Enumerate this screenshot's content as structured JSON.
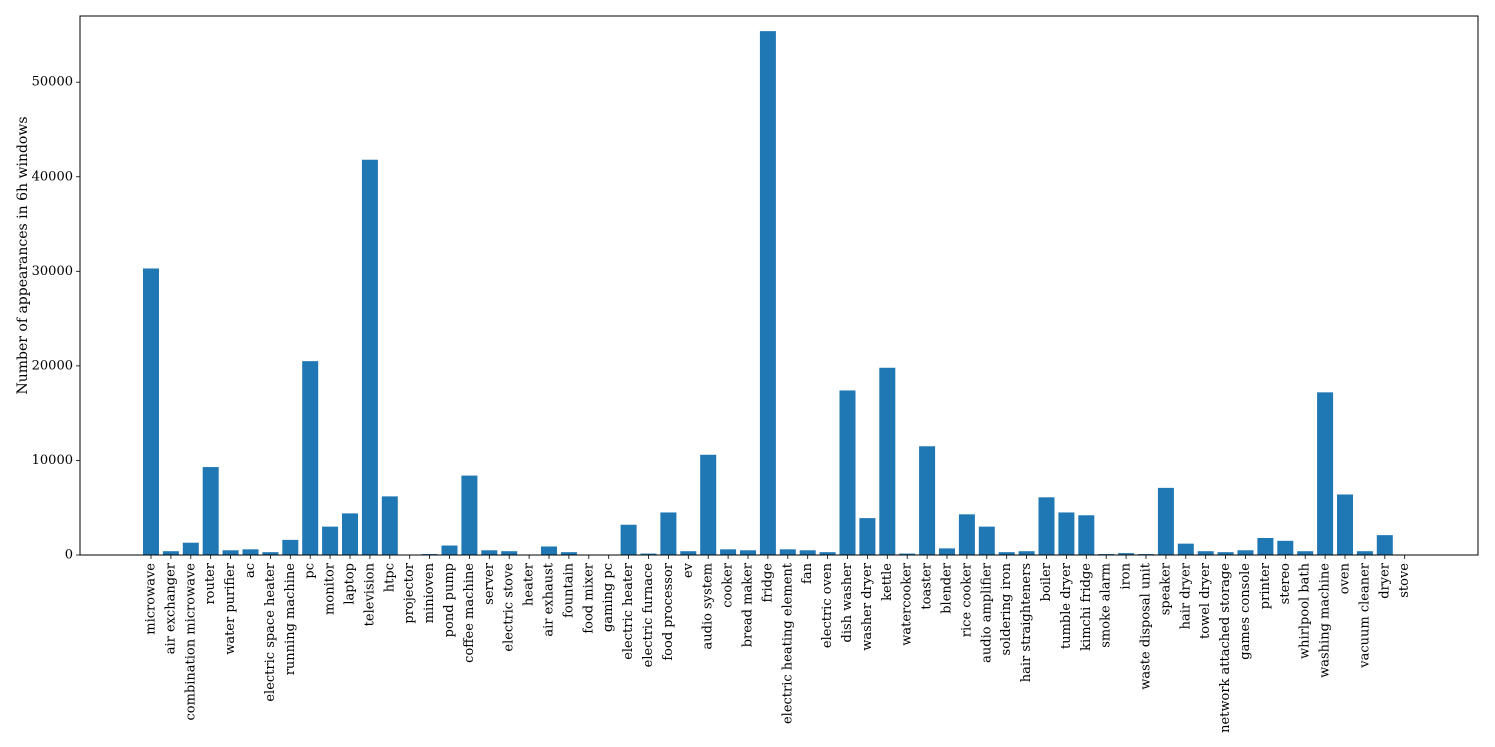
{
  "chart_data": {
    "type": "bar",
    "title": "",
    "xlabel": "",
    "ylabel": "Number of appearances in 6h windows",
    "ylim": [
      0,
      57000
    ],
    "yticks": [
      0,
      10000,
      20000,
      30000,
      40000,
      50000
    ],
    "ytick_labels": [
      "0",
      "10000",
      "20000",
      "30000",
      "40000",
      "50000"
    ],
    "grid": false,
    "bar_color": "#1f77b4",
    "categories": [
      "microwave",
      "air exchanger",
      "combination microwave",
      "router",
      "water purifier",
      "ac",
      "electric space heater",
      "running machine",
      "pc",
      "monitor",
      "laptop",
      "television",
      "htpc",
      "projector",
      "minioven",
      "pond pump",
      "coffee machine",
      "server",
      "electric stove",
      "heater",
      "air exhaust",
      "fountain",
      "food mixer",
      "gaming pc",
      "electric heater",
      "electric furnace",
      "food processor",
      "ev",
      "audio system",
      "cooker",
      "bread maker",
      "fridge",
      "electric heating element",
      "fan",
      "electric oven",
      "dish washer",
      "washer dryer",
      "kettle",
      "watercooker",
      "toaster",
      "blender",
      "rice cooker",
      "audio amplifier",
      "soldering iron",
      "hair straighteners",
      "boiler",
      "tumble dryer",
      "kimchi fridge",
      "smoke alarm",
      "iron",
      "waste disposal unit",
      "speaker",
      "hair dryer",
      "towel dryer",
      "network attached storage",
      "games console",
      "printer",
      "stereo",
      "whirlpool bath",
      "washing machine",
      "oven",
      "vacuum cleaner",
      "dryer",
      "stove"
    ],
    "values": [
      30300,
      400,
      1300,
      9300,
      500,
      600,
      300,
      1600,
      20500,
      3000,
      4400,
      41800,
      6200,
      50,
      100,
      1000,
      8400,
      500,
      400,
      50,
      900,
      300,
      50,
      50,
      3200,
      150,
      4500,
      400,
      10600,
      600,
      500,
      55400,
      600,
      500,
      300,
      17400,
      3900,
      19800,
      150,
      11500,
      700,
      4300,
      3000,
      300,
      400,
      6100,
      4500,
      4200,
      100,
      200,
      100,
      7100,
      1200,
      400,
      300,
      500,
      1800,
      1500,
      400,
      17200,
      6400,
      400,
      2100,
      50
    ]
  }
}
